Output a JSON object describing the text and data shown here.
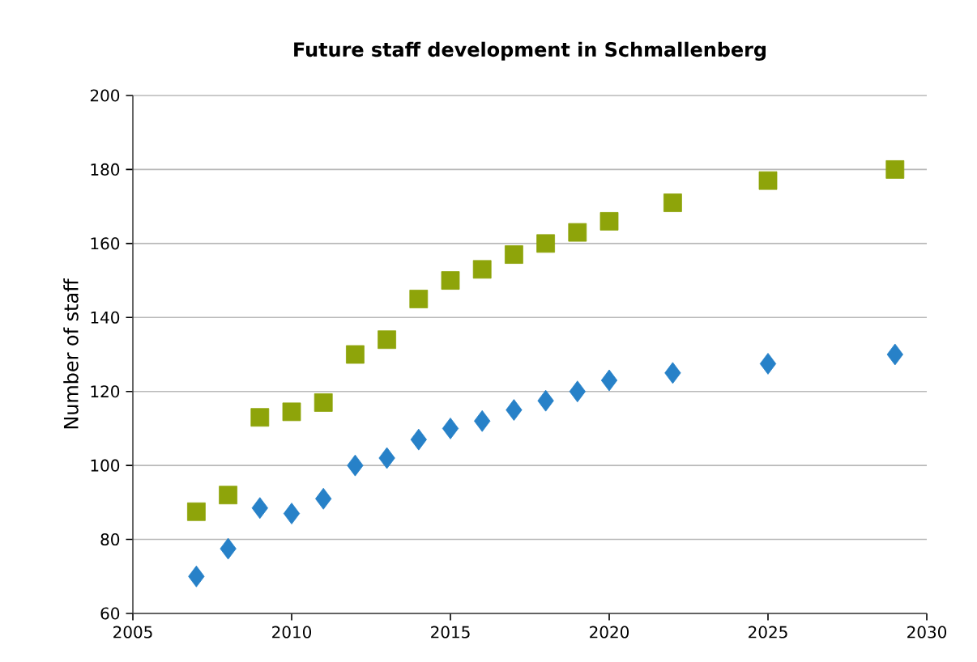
{
  "chart_data": {
    "type": "scatter",
    "title": "Future staff development in Schmallenberg",
    "ylabel": "Number of staff",
    "xlim": [
      2005,
      2030
    ],
    "xticks": [
      2005,
      2010,
      2015,
      2020,
      2025,
      2030
    ],
    "ylim": [
      60,
      200
    ],
    "yticks": [
      60,
      80,
      100,
      120,
      140,
      160,
      180,
      200
    ],
    "grid": "y",
    "series": [
      {
        "color": "#8ea40a",
        "marker": "square",
        "x": [
          2007,
          2008,
          2009,
          2010,
          2011,
          2012,
          2013,
          2014,
          2015,
          2016,
          2017,
          2018,
          2019,
          2020,
          2022,
          2025,
          2029
        ],
        "values": [
          87.5,
          92,
          113,
          114.5,
          117,
          130,
          134,
          145,
          150,
          153,
          157,
          160,
          163,
          166,
          171,
          177,
          180
        ]
      },
      {
        "color": "#2781c8",
        "marker": "diamond",
        "x": [
          2007,
          2008,
          2009,
          2010,
          2011,
          2012,
          2013,
          2014,
          2015,
          2016,
          2017,
          2018,
          2019,
          2020,
          2022,
          2025,
          2029
        ],
        "values": [
          70,
          77.5,
          88.5,
          87,
          91,
          100,
          102,
          107,
          110,
          112,
          115,
          117.5,
          120,
          123,
          125,
          127.5,
          130
        ]
      }
    ]
  }
}
